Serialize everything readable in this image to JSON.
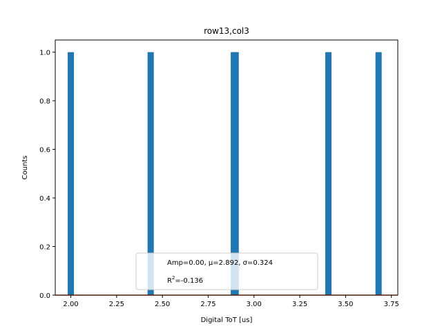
{
  "chart_data": {
    "type": "bar",
    "title": "row13,col3",
    "xlabel": "Digital ToT [us]",
    "ylabel": "Counts",
    "xlim": [
      1.915,
      3.785
    ],
    "ylim": [
      0,
      1.05
    ],
    "bin_width": 0.034,
    "x": [
      2.0,
      2.436,
      2.89,
      2.9,
      3.406,
      3.68
    ],
    "values": [
      1,
      1,
      1,
      1,
      1,
      1
    ],
    "bar_color": "#1f77b4",
    "fit_line": {
      "x": [
        1.915,
        3.785
      ],
      "y": [
        0,
        0
      ],
      "color": "#e6550d"
    },
    "xticks": [
      "2.00",
      "2.25",
      "2.50",
      "2.75",
      "3.00",
      "3.25",
      "3.50",
      "3.75"
    ],
    "yticks": [
      "0.0",
      "0.2",
      "0.4",
      "0.6",
      "0.8",
      "1.0"
    ],
    "legend": {
      "location": "lower center",
      "line1": "Amp=0.00, μ=2.892, σ=0.324",
      "line2_prefix": "R",
      "line2_sup": "2",
      "line2_suffix": "=-0.136"
    },
    "grid": false
  }
}
